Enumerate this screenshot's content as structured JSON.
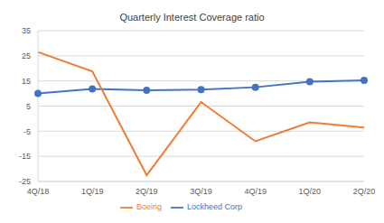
{
  "chart_data": {
    "type": "line",
    "title": "Quarterly Interest Coverage ratio",
    "categories": [
      "4Q/18",
      "1Q/19",
      "2Q/19",
      "3Q/19",
      "4Q/19",
      "1Q/20",
      "2Q/20"
    ],
    "series": [
      {
        "name": "Lockheed Corp",
        "color": "#4472c4",
        "marker": "circle",
        "line_style": "solid",
        "values": [
          10,
          11.8,
          11.3,
          11.6,
          12.5,
          14.7,
          15.2
        ]
      },
      {
        "name": "Boeing",
        "color": "#ed7d31",
        "marker": "none",
        "line_style": "solid",
        "values": [
          26.5,
          18.8,
          -22.5,
          6.6,
          -9,
          -1.5,
          -3.5
        ]
      }
    ],
    "ylim": [
      -25,
      35
    ],
    "yticks": [
      -25,
      -15,
      -5,
      5,
      15,
      25,
      35
    ],
    "grid": true,
    "legend": "bottom"
  }
}
